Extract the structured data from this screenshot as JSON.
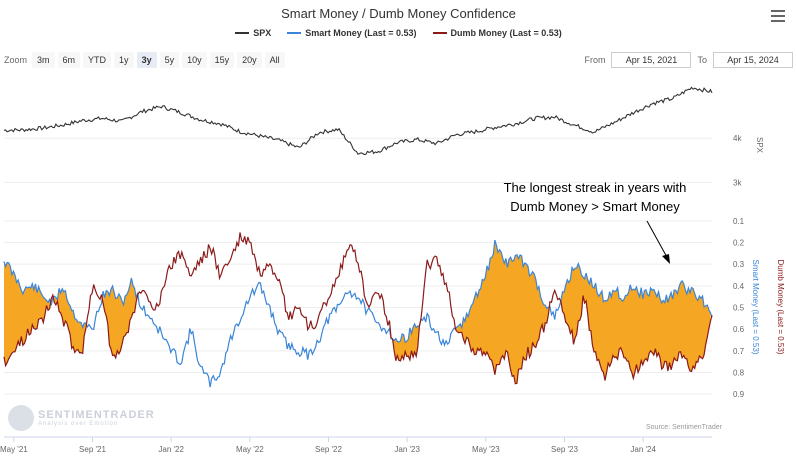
{
  "title": "Smart Money / Dumb Money Confidence",
  "menu_icon": "hamburger-menu-icon",
  "legend": [
    {
      "label": "SPX",
      "color": "#333333"
    },
    {
      "label": "Smart Money (Last = 0.53)",
      "color": "#3a85d8"
    },
    {
      "label": "Dumb Money (Last = 0.53)",
      "color": "#8b1a1a"
    }
  ],
  "zoom": {
    "label": "Zoom",
    "buttons": [
      "3m",
      "6m",
      "YTD",
      "1y",
      "3y",
      "5y",
      "10y",
      "15y",
      "20y",
      "All"
    ],
    "active": "3y"
  },
  "range": {
    "from_label": "From",
    "from": "Apr 15, 2021",
    "to_label": "To",
    "to": "Apr 15, 2024"
  },
  "annotation": {
    "line1": "The longest streak in years with",
    "line2": "Dumb Money > Smart Money"
  },
  "logo": {
    "name": "SENTIMENTRADER",
    "tagline": "Analysis over Emotion"
  },
  "credit": "Source: SentimenTrader",
  "colors": {
    "spx": "#333333",
    "smart": "#3a85d8",
    "dumb": "#8b1a1a",
    "fill": "#f5a623"
  },
  "chart_data": {
    "type": "line",
    "x_ticks": [
      "May '21",
      "Sep '21",
      "Jan '22",
      "May '22",
      "Sep '22",
      "Jan '23",
      "May '23",
      "Sep '23",
      "Jan '24"
    ],
    "x_range_months": [
      0,
      36
    ],
    "x_tick_months": [
      0.5,
      4.5,
      8.5,
      12.5,
      16.5,
      20.5,
      24.5,
      28.5,
      32.5
    ],
    "spx_panel": {
      "axis_title": "SPX",
      "tick_labels": [
        "4k",
        "3k"
      ],
      "tick_values": [
        4000,
        3000
      ],
      "ylim": [
        2600,
        5500
      ],
      "months": [
        0,
        1,
        2,
        3,
        4,
        5,
        6,
        7,
        8,
        9,
        10,
        11,
        12,
        13,
        14,
        15,
        16,
        17,
        18,
        19,
        20,
        21,
        22,
        23,
        24,
        25,
        26,
        27,
        28,
        29,
        30,
        31,
        32,
        33,
        34,
        35,
        36
      ],
      "values": [
        4180,
        4190,
        4230,
        4300,
        4400,
        4450,
        4380,
        4600,
        4720,
        4580,
        4420,
        4330,
        4150,
        4050,
        3950,
        3780,
        4130,
        4200,
        3660,
        3700,
        3900,
        3970,
        3880,
        4080,
        4150,
        4250,
        4330,
        4450,
        4480,
        4300,
        4140,
        4350,
        4580,
        4790,
        4900,
        5150,
        5050
      ]
    },
    "sentiment_panel": {
      "y_axis_label_left": "Smart Money (Last = 0.53)",
      "y_axis_label_right": "Dumb Money (Last = 0.53)",
      "tick_labels": [
        "0.1",
        "0.2",
        "0.3",
        "0.4",
        "0.5",
        "0.6",
        "0.7",
        "0.8",
        "0.9"
      ],
      "tick_values": [
        0.1,
        0.2,
        0.3,
        0.4,
        0.5,
        0.6,
        0.7,
        0.8,
        0.9
      ],
      "ylim": [
        0.05,
        0.95
      ],
      "inverted": true,
      "shading": "area between series where Dumb Money > Smart Money",
      "series": [
        {
          "name": "Smart Money",
          "last": 0.53,
          "months": [
            0,
            0.5,
            1,
            1.5,
            2,
            2.5,
            3,
            3.5,
            4,
            4.5,
            5,
            5.5,
            6,
            6.5,
            7,
            7.5,
            8,
            8.5,
            9,
            9.5,
            10,
            10.5,
            11,
            11.5,
            12,
            12.5,
            13,
            13.5,
            14,
            14.5,
            15,
            15.5,
            16,
            16.5,
            17,
            17.5,
            18,
            18.5,
            19,
            19.5,
            20,
            20.5,
            21,
            21.5,
            22,
            22.5,
            23,
            23.5,
            24,
            24.5,
            25,
            25.5,
            26,
            26.5,
            27,
            27.5,
            28,
            28.5,
            29,
            29.5,
            30,
            30.5,
            31,
            31.5,
            32,
            32.5,
            33,
            33.5,
            34,
            34.5,
            35,
            35.5,
            36
          ],
          "values": [
            0.28,
            0.35,
            0.42,
            0.4,
            0.45,
            0.48,
            0.4,
            0.52,
            0.58,
            0.6,
            0.45,
            0.42,
            0.48,
            0.38,
            0.5,
            0.55,
            0.62,
            0.7,
            0.75,
            0.6,
            0.78,
            0.85,
            0.8,
            0.65,
            0.55,
            0.45,
            0.4,
            0.5,
            0.62,
            0.68,
            0.7,
            0.72,
            0.65,
            0.55,
            0.5,
            0.42,
            0.45,
            0.52,
            0.58,
            0.6,
            0.66,
            0.63,
            0.58,
            0.55,
            0.62,
            0.68,
            0.6,
            0.55,
            0.45,
            0.35,
            0.2,
            0.3,
            0.26,
            0.3,
            0.37,
            0.48,
            0.55,
            0.42,
            0.3,
            0.35,
            0.4,
            0.46,
            0.42,
            0.45,
            0.4,
            0.44,
            0.42,
            0.47,
            0.44,
            0.4,
            0.43,
            0.46,
            0.53
          ]
        },
        {
          "name": "Dumb Money",
          "last": 0.53,
          "months": [
            0,
            0.5,
            1,
            1.5,
            2,
            2.5,
            3,
            3.5,
            4,
            4.5,
            5,
            5.5,
            6,
            6.5,
            7,
            7.5,
            8,
            8.5,
            9,
            9.5,
            10,
            10.5,
            11,
            11.5,
            12,
            12.5,
            13,
            13.5,
            14,
            14.5,
            15,
            15.5,
            16,
            16.5,
            17,
            17.5,
            18,
            18.5,
            19,
            19.5,
            20,
            20.5,
            21,
            21.5,
            22,
            22.5,
            23,
            23.5,
            24,
            24.5,
            25,
            25.5,
            26,
            26.5,
            27,
            27.5,
            28,
            28.5,
            29,
            29.5,
            30,
            30.5,
            31,
            31.5,
            32,
            32.5,
            33,
            33.5,
            34,
            34.5,
            35,
            35.5,
            36
          ],
          "values": [
            0.75,
            0.7,
            0.65,
            0.58,
            0.55,
            0.45,
            0.55,
            0.68,
            0.7,
            0.4,
            0.45,
            0.72,
            0.68,
            0.55,
            0.4,
            0.5,
            0.45,
            0.3,
            0.25,
            0.35,
            0.28,
            0.22,
            0.35,
            0.28,
            0.18,
            0.2,
            0.35,
            0.32,
            0.4,
            0.55,
            0.5,
            0.6,
            0.55,
            0.45,
            0.35,
            0.22,
            0.28,
            0.5,
            0.4,
            0.55,
            0.75,
            0.72,
            0.7,
            0.3,
            0.28,
            0.4,
            0.6,
            0.65,
            0.7,
            0.72,
            0.8,
            0.7,
            0.85,
            0.72,
            0.68,
            0.58,
            0.42,
            0.55,
            0.65,
            0.45,
            0.7,
            0.82,
            0.74,
            0.7,
            0.8,
            0.75,
            0.7,
            0.77,
            0.76,
            0.72,
            0.8,
            0.73,
            0.53
          ]
        }
      ]
    }
  }
}
